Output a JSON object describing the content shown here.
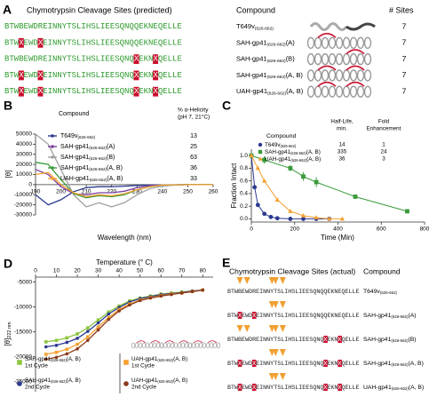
{
  "panel_a": {
    "label": "A",
    "title": "Chymotrypsin Cleavage Sites (predicted)",
    "compound_header": "Compound",
    "sites_header": "# Sites",
    "rows": [
      {
        "sequence": [
          "BTWBEWDREINNYTSLIHSLIEESQNQQEKNEQELLE"
        ],
        "name": "T649v",
        "name_sub": "(626-662)",
        "sites": 7
      },
      {
        "sequence": [
          "BTW",
          "X",
          "EWD",
          "X",
          "EINNYTSLIHSLIEESQNQQEKNEQELLE"
        ],
        "name": "SAH-gp41",
        "name_sub": "(626-662)",
        "name_suffix": "(A)",
        "sites": 7
      },
      {
        "sequence": [
          "BTWBEWDREINNYTSLIHSLIEESQNQ",
          "X",
          "EKN",
          "X",
          "QELLE"
        ],
        "name": "SAH-gp41",
        "name_sub": "(626-662)",
        "name_suffix": "(B)",
        "sites": 7
      },
      {
        "sequence": [
          "BTW",
          "X",
          "EWD",
          "X",
          "EINNYTSLIHSLIEESQNQ",
          "X",
          "EKN",
          "X",
          "QELLE"
        ],
        "name": "SAH-gp41",
        "name_sub": "(626-662)",
        "name_suffix": "(A, B)",
        "sites": 7
      },
      {
        "sequence": [
          "BTW",
          "X",
          "EWD",
          "X",
          "EINNYTSLIHSLIEESQNQ",
          "X",
          "EKN",
          "X",
          "QELLE"
        ],
        "name": "UAH-gp41",
        "name_sub": "(626-662)",
        "name_suffix": "(A, B)",
        "sites": 7
      }
    ]
  },
  "chart_data": [
    {
      "type": "line",
      "panel_label": "B",
      "xlabel": "Wavelength (nm)",
      "ylabel": "[θ]",
      "xlim": [
        190,
        260
      ],
      "ylim": [
        -30000,
        50000
      ],
      "xticks": [
        190,
        200,
        210,
        220,
        230,
        240,
        250,
        260
      ],
      "yticks": [
        50000,
        40000,
        30000,
        20000,
        10000,
        0,
        -10000,
        -20000,
        -30000
      ],
      "x": [
        190,
        195,
        200,
        205,
        210,
        215,
        220,
        225,
        230,
        235,
        240,
        245,
        250,
        255,
        260
      ],
      "legend_title": "Compound",
      "helicity_label": [
        "% α-Helicity",
        "(pH 7, 21°C)"
      ],
      "series": [
        {
          "name": "T649v",
          "name_sub": "(626-662)",
          "color": "#2b3990",
          "helicity": 13,
          "values": [
            -10000,
            -20000,
            -15000,
            -7000,
            -3000,
            -2000,
            -2000,
            -1500,
            -800,
            -400,
            -200,
            -100,
            0,
            0,
            0
          ]
        },
        {
          "name": "SAH-gp41",
          "name_sub": "(626-662)",
          "name_suffix": "(A)",
          "color": "#7b3fa0",
          "helicity": 25,
          "values": [
            15000,
            10000,
            -2000,
            -9000,
            -10000,
            -8000,
            -8000,
            -6500,
            -3000,
            -1000,
            -400,
            -200,
            0,
            0,
            0
          ]
        },
        {
          "name": "SAH-gp41",
          "name_sub": "(626-662)",
          "name_suffix": "(B)",
          "color": "#a0a0a0",
          "helicity": 63,
          "values": [
            50000,
            40000,
            15000,
            -10000,
            -22000,
            -18000,
            -22000,
            -18000,
            -10000,
            -4000,
            -1500,
            -500,
            0,
            0,
            0
          ]
        },
        {
          "name": "SAH-gp41",
          "name_sub": "(626-662)",
          "name_suffix": "(A, B)",
          "color": "#3a9a3a",
          "helicity": 36,
          "values": [
            22000,
            20000,
            5000,
            -9000,
            -13000,
            -11000,
            -12000,
            -10000,
            -5000,
            -2000,
            -500,
            -200,
            0,
            0,
            0
          ]
        },
        {
          "name": "UAH-gp41",
          "name_sub": "(626-662)",
          "name_suffix": "(A, B)",
          "color": "#f5a030",
          "helicity": 33,
          "values": [
            10000,
            12000,
            0,
            -8000,
            -12000,
            -10000,
            -11000,
            -9000,
            -5000,
            -2000,
            -500,
            -200,
            0,
            0,
            0
          ]
        }
      ]
    },
    {
      "type": "scatter",
      "panel_label": "C",
      "xlabel": "Time (Min)",
      "ylabel": "Fraction Intact",
      "xlim": [
        0,
        800
      ],
      "ylim": [
        -0.05,
        1.1
      ],
      "xticks": [
        0,
        200,
        400,
        600,
        800
      ],
      "yticks": [
        {
          "value": 0,
          "label": "0.0"
        },
        {
          "value": 0.2,
          "label": "0.2"
        },
        {
          "value": 0.4,
          "label": "0.4"
        },
        {
          "value": 0.6,
          "label": "0.6"
        },
        {
          "value": 0.8,
          "label": "0.8"
        },
        {
          "value": 1,
          "label": "1.0"
        }
      ],
      "legend_title": "Compound",
      "half_life_label": [
        "Half-Life,",
        "min."
      ],
      "fold_label": [
        "Fold",
        "Enhancement"
      ],
      "series": [
        {
          "name": "T649v",
          "name_sub": "(626-662)",
          "color": "#2b3990",
          "marker": "circle",
          "half_life": 14,
          "fold": 1,
          "x": [
            0,
            15,
            30,
            60,
            90,
            120,
            180,
            240,
            300,
            360
          ],
          "values": [
            1,
            0.5,
            0.22,
            0.08,
            0.03,
            0.01,
            0,
            0,
            0,
            0
          ]
        },
        {
          "name": "SAH-gp41",
          "name_sub": "(626-662)",
          "name_suffix": "(A, B)",
          "color": "#3a9a3a",
          "marker": "square",
          "half_life": 335,
          "fold": 24,
          "x": [
            0,
            60,
            180,
            240,
            300,
            480,
            720
          ],
          "values": [
            1,
            0.93,
            0.8,
            0.67,
            0.58,
            0.35,
            0.12
          ],
          "errors": [
            0.02,
            0.06,
            0.05,
            0.07,
            0.08,
            0.02,
            0.03
          ]
        },
        {
          "name": "UAH-gp41",
          "name_sub": "(626-662)",
          "name_suffix": "(A, B)",
          "color": "#f5a030",
          "marker": "triangle",
          "half_life": 36,
          "fold": 3,
          "x": [
            0,
            30,
            60,
            120,
            180,
            240,
            300,
            360,
            420
          ],
          "values": [
            1,
            0.8,
            0.6,
            0.3,
            0.12,
            0.05,
            0.02,
            0,
            0
          ]
        }
      ]
    },
    {
      "type": "line",
      "panel_label": "D",
      "xlabel": "Temperature (° C)",
      "ylabel": "[θ]",
      "ylabel_sub": "222 nm",
      "xlim": [
        0,
        85
      ],
      "ylim": [
        -27000,
        -4000
      ],
      "xticks": [
        0,
        10,
        20,
        30,
        40,
        50,
        60,
        70,
        80
      ],
      "yticks": [
        -5000,
        -10000,
        -15000,
        -20000,
        -25000
      ],
      "x": [
        5,
        10,
        15,
        20,
        25,
        30,
        35,
        40,
        45,
        50,
        55,
        60,
        65,
        70,
        75,
        80
      ],
      "series": [
        {
          "name": "SAH-gp41",
          "name_sub": "(626-662)",
          "name_suffix": "(A, B)",
          "cycle": "1st Cycle",
          "color": "#8cc63f",
          "marker": "square",
          "values": [
            -17000,
            -16700,
            -16200,
            -15400,
            -14200,
            -12600,
            -11000,
            -9800,
            -8800,
            -8200,
            -7800,
            -7400,
            -7200,
            -7000,
            -6800,
            -6600
          ]
        },
        {
          "name": "SAH-gp41",
          "name_sub": "(626-662)",
          "name_suffix": "(A, B)",
          "cycle": "2nd Cycle",
          "color": "#2b3990",
          "marker": "circle",
          "values": [
            -18000,
            -17700,
            -17100,
            -16300,
            -14900,
            -13200,
            -11400,
            -10100,
            -9000,
            -8300,
            -7900,
            -7500,
            -7300,
            -7100,
            -6800,
            -6600
          ]
        },
        {
          "name": "UAH-gp41",
          "name_sub": "(626-662)",
          "name_suffix": "(A, B)",
          "cycle": "1st Cycle",
          "color": "#f5a030",
          "marker": "square",
          "values": [
            -19500,
            -19100,
            -18500,
            -17500,
            -16000,
            -14000,
            -12100,
            -10500,
            -9400,
            -8600,
            -8100,
            -7700,
            -7400,
            -7200,
            -6900,
            -6600
          ]
        },
        {
          "name": "UAH-gp41",
          "name_sub": "(626-662)",
          "name_suffix": "(A, B)",
          "cycle": "2nd Cycle",
          "color": "#8b3a1a",
          "marker": "circle",
          "values": [
            -20500,
            -20100,
            -19400,
            -18400,
            -16700,
            -14600,
            -12500,
            -10800,
            -9600,
            -8700,
            -8200,
            -7800,
            -7500,
            -7200,
            -6900,
            -6600
          ]
        }
      ]
    }
  ],
  "panel_e": {
    "label": "E",
    "title": "Chymotrypsin Cleavage Sites (actual)",
    "compound_header": "Compound",
    "rows": [
      {
        "sequence": [
          "BTWBEWDREINNYTSLIHSLIEESQNQQEKNEQELLE"
        ],
        "name": "T649v",
        "name_sub": "(626-662)"
      },
      {
        "sequence": [
          "BTW",
          "X",
          "EWD",
          "X",
          "EINNYTSLIHSLIEESQNQQEKNEQELLE"
        ],
        "name": "SAH-gp41",
        "name_sub": "(626-662)",
        "name_suffix": "(A)"
      },
      {
        "sequence": [
          "BTWBEWDREINNYTSLIHSLIEESQNQ",
          "X",
          "EKN",
          "X",
          "QELLE"
        ],
        "name": "SAH-gp41",
        "name_sub": "(626-662)",
        "name_suffix": "(B)"
      },
      {
        "sequence": [
          "BTW",
          "X",
          "EWD",
          "X",
          "EINNYTSLIHSLIEESQNQ",
          "X",
          "EKN",
          "X",
          "QELLE"
        ],
        "name": "SAH-gp41",
        "name_sub": "(626-662)",
        "name_suffix": "(A, B)"
      },
      {
        "sequence": [
          "BTW",
          "X",
          "EWD",
          "X",
          "EINNYTSLIHSLIEESQNQ",
          "X",
          "EKN",
          "X",
          "QELLE"
        ],
        "name": "UAH-gp41",
        "name_sub": "(626-662)",
        "name_suffix": "(A, B)"
      }
    ]
  }
}
